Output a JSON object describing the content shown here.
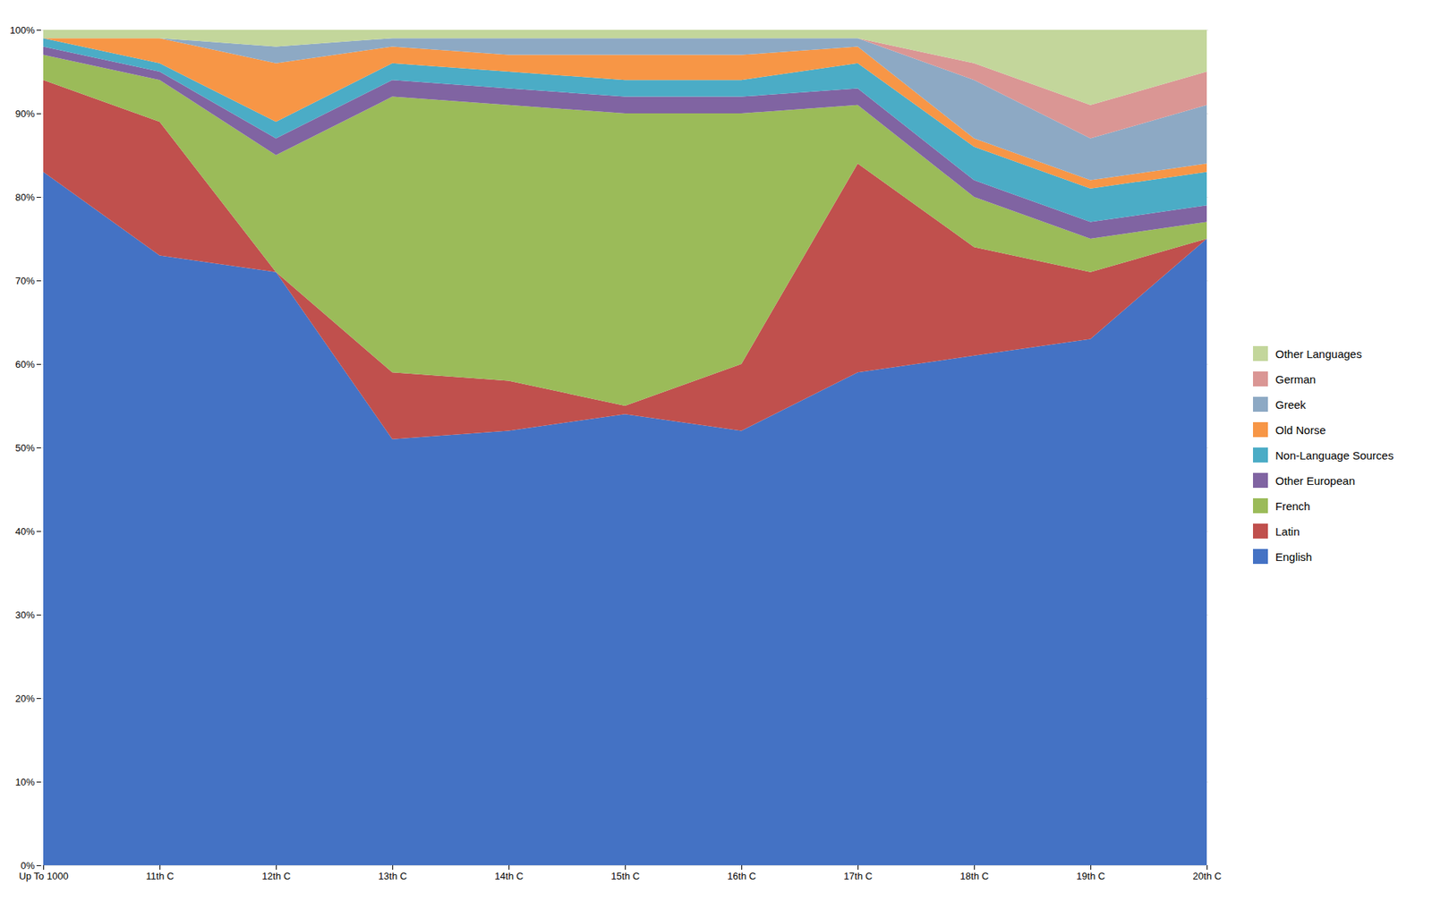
{
  "chart_data": {
    "type": "area",
    "stacked": true,
    "categories": [
      "Up To 1000",
      "11th C",
      "12th C",
      "13th C",
      "14th C",
      "15th C",
      "16th C",
      "17th C",
      "18th C",
      "19th C",
      "20th C"
    ],
    "series": [
      {
        "name": "English",
        "color": "#4472C4",
        "values": [
          83,
          73,
          71,
          51,
          52,
          54,
          52,
          59,
          61,
          63,
          75
        ]
      },
      {
        "name": "Latin",
        "color": "#C0504D",
        "values": [
          11,
          16,
          0,
          8,
          6,
          1,
          8,
          25,
          13,
          8,
          0
        ]
      },
      {
        "name": "French",
        "color": "#9BBB59",
        "values": [
          3,
          5,
          14,
          33,
          33,
          35,
          30,
          7,
          6,
          4,
          2
        ]
      },
      {
        "name": "Other European",
        "color": "#8064A2",
        "values": [
          1,
          1,
          2,
          2,
          2,
          2,
          2,
          2,
          2,
          2,
          2
        ]
      },
      {
        "name": "Non-Language Sources",
        "color": "#4BACC6",
        "values": [
          1,
          1,
          2,
          2,
          2,
          2,
          2,
          3,
          4,
          4,
          4
        ]
      },
      {
        "name": "Old Norse",
        "color": "#F79646",
        "values": [
          0,
          3,
          7,
          2,
          2,
          3,
          3,
          2,
          1,
          1,
          1
        ]
      },
      {
        "name": "Greek",
        "color": "#8DA9C4",
        "values": [
          0,
          0,
          2,
          1,
          2,
          2,
          2,
          1,
          7,
          5,
          7
        ]
      },
      {
        "name": "German",
        "color": "#DA9694",
        "values": [
          0,
          0,
          0,
          0,
          0,
          0,
          0,
          0,
          2,
          4,
          4
        ]
      },
      {
        "name": "Other Languages",
        "color": "#C3D69B",
        "values": [
          1,
          1,
          2,
          1,
          1,
          1,
          1,
          1,
          4,
          9,
          5
        ]
      }
    ],
    "ylim": [
      0,
      100
    ],
    "yticks": [
      {
        "value": 0,
        "label": "0%"
      },
      {
        "value": 10,
        "label": "10%"
      },
      {
        "value": 20,
        "label": "20%"
      },
      {
        "value": 30,
        "label": "30%"
      },
      {
        "value": 40,
        "label": "40%"
      },
      {
        "value": 50,
        "label": "50%"
      },
      {
        "value": 60,
        "label": "60%"
      },
      {
        "value": 70,
        "label": "70%"
      },
      {
        "value": 80,
        "label": "80%"
      },
      {
        "value": 90,
        "label": "90%"
      },
      {
        "value": 100,
        "label": "100%"
      }
    ],
    "grid": true,
    "legend": "right"
  }
}
